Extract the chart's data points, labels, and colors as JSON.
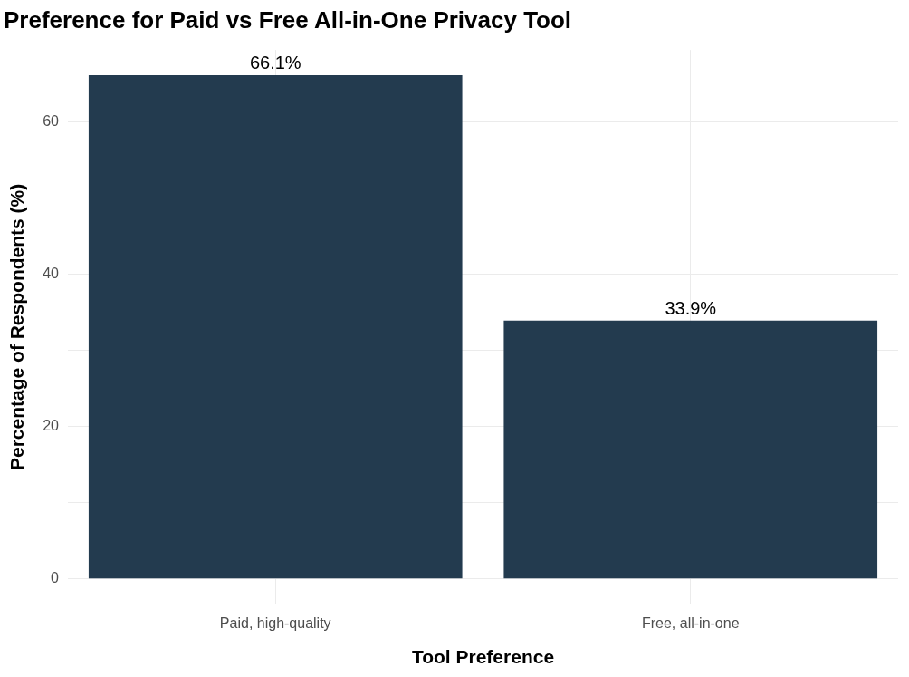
{
  "chart_data": {
    "type": "bar",
    "title": "Preference for Paid vs Free All-in-One Privacy Tool",
    "xlabel": "Tool Preference",
    "ylabel": "Percentage of Respondents (%)",
    "categories": [
      "Paid, high-quality",
      "Free, all-in-one"
    ],
    "values": [
      66.1,
      33.9
    ],
    "color": "#233b4f",
    "value_labels": [
      "66.1%",
      "33.9%"
    ],
    "ylim": [
      -3.3,
      69.4
    ],
    "yticks": [
      0,
      {
        "value": 10,
        "label": null
      },
      20,
      {
        "value": 30,
        "label": null
      },
      40,
      {
        "value": 50,
        "label": null
      },
      60
    ],
    "grid": true,
    "legend": false
  }
}
